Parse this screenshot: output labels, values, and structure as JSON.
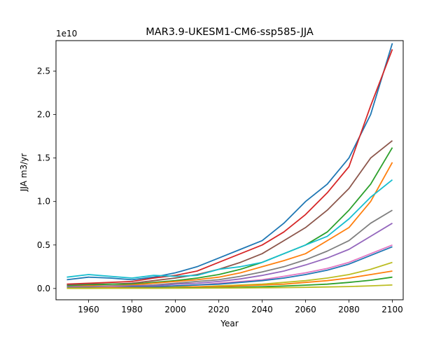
{
  "chart_data": {
    "type": "line",
    "title": "MAR3.9-UKESM1-CM6-ssp585-JJA",
    "xlabel": "Year",
    "ylabel": "JJA m3/yr",
    "y_offset_label": "1e10",
    "xlim": [
      1945,
      2105
    ],
    "ylim": [
      -1.3,
      28.5
    ],
    "y_scale": 10000000000.0,
    "x_ticks": [
      1960,
      1980,
      2000,
      2020,
      2040,
      2060,
      2080,
      2100
    ],
    "x_tick_labels": [
      "1960",
      "1980",
      "2000",
      "2020",
      "2040",
      "2060",
      "2080",
      "2100"
    ],
    "y_ticks": [
      0,
      5,
      10,
      15,
      20,
      25
    ],
    "y_tick_labels": [
      "0.0",
      "0.5",
      "1.0",
      "1.5",
      "2.0",
      "2.5"
    ],
    "grid": false,
    "legend": "none",
    "colors": [
      "#1f77b4",
      "#ff7f0e",
      "#2ca02c",
      "#d62728",
      "#9467bd",
      "#8c564b",
      "#e377c2",
      "#7f7f7f",
      "#bcbd22",
      "#17becf"
    ],
    "x": [
      1950,
      1960,
      1970,
      1980,
      1990,
      2000,
      2010,
      2020,
      2030,
      2040,
      2050,
      2060,
      2070,
      2080,
      2090,
      2100
    ],
    "series": [
      {
        "color": "#1f77b4",
        "values": [
          1.0,
          1.3,
          1.2,
          1.0,
          1.3,
          1.8,
          2.5,
          3.5,
          4.5,
          5.5,
          7.5,
          10.0,
          12.0,
          15.0,
          20.0,
          28.2
        ]
      },
      {
        "color": "#d62728",
        "values": [
          0.5,
          0.6,
          0.7,
          0.8,
          1.2,
          1.5,
          2.0,
          3.0,
          4.0,
          5.0,
          6.5,
          8.5,
          11.0,
          14.0,
          21.0,
          27.5
        ]
      },
      {
        "color": "#8c564b",
        "values": [
          0.4,
          0.5,
          0.5,
          0.6,
          0.9,
          1.2,
          1.6,
          2.2,
          3.0,
          4.0,
          5.5,
          7.0,
          9.0,
          11.5,
          15.0,
          17.0
        ]
      },
      {
        "color": "#2ca02c",
        "values": [
          0.3,
          0.4,
          0.5,
          0.5,
          0.7,
          0.9,
          1.2,
          1.6,
          2.2,
          3.0,
          4.0,
          5.0,
          6.5,
          9.0,
          12.0,
          16.2
        ]
      },
      {
        "color": "#ff7f0e",
        "values": [
          0.2,
          0.3,
          0.3,
          0.4,
          0.6,
          0.8,
          1.0,
          1.3,
          1.8,
          2.5,
          3.2,
          4.0,
          5.5,
          7.0,
          10.0,
          14.5
        ]
      },
      {
        "color": "#17becf",
        "values": [
          1.3,
          1.6,
          1.4,
          1.2,
          1.5,
          1.4,
          1.5,
          2.2,
          2.5,
          3.0,
          4.0,
          5.0,
          6.0,
          8.0,
          10.5,
          12.5
        ]
      },
      {
        "color": "#7f7f7f",
        "values": [
          0.2,
          0.2,
          0.3,
          0.3,
          0.4,
          0.6,
          0.8,
          1.0,
          1.4,
          1.9,
          2.5,
          3.3,
          4.3,
          5.5,
          7.5,
          9.0
        ]
      },
      {
        "color": "#9467bd",
        "values": [
          0.2,
          0.2,
          0.2,
          0.3,
          0.3,
          0.5,
          0.6,
          0.8,
          1.1,
          1.5,
          2.0,
          2.7,
          3.5,
          4.5,
          6.0,
          7.5
        ]
      },
      {
        "color": "#e377c2",
        "values": [
          0.1,
          0.1,
          0.2,
          0.2,
          0.2,
          0.3,
          0.4,
          0.6,
          0.8,
          1.0,
          1.4,
          1.8,
          2.3,
          3.0,
          4.0,
          5.0
        ]
      },
      {
        "color": "#bcbd22",
        "values": [
          0.05,
          0.1,
          0.1,
          0.1,
          0.1,
          0.2,
          0.2,
          0.3,
          0.4,
          0.5,
          0.7,
          0.9,
          1.2,
          1.6,
          2.2,
          3.0
        ]
      },
      {
        "color": "#1f77b4",
        "values": [
          0.1,
          0.1,
          0.1,
          0.2,
          0.2,
          0.3,
          0.4,
          0.5,
          0.7,
          0.9,
          1.2,
          1.6,
          2.1,
          2.8,
          3.8,
          4.8
        ]
      },
      {
        "color": "#ff7f0e",
        "values": [
          0.05,
          0.05,
          0.1,
          0.1,
          0.1,
          0.1,
          0.2,
          0.2,
          0.3,
          0.4,
          0.5,
          0.7,
          0.9,
          1.2,
          1.6,
          2.0
        ]
      },
      {
        "color": "#2ca02c",
        "values": [
          0.02,
          0.03,
          0.03,
          0.04,
          0.05,
          0.06,
          0.08,
          0.1,
          0.14,
          0.2,
          0.28,
          0.38,
          0.5,
          0.7,
          0.95,
          1.3
        ]
      },
      {
        "color": "#bcbd22",
        "values": [
          0.01,
          0.01,
          0.02,
          0.02,
          0.02,
          0.03,
          0.04,
          0.05,
          0.06,
          0.08,
          0.1,
          0.13,
          0.17,
          0.22,
          0.3,
          0.4
        ]
      }
    ]
  }
}
